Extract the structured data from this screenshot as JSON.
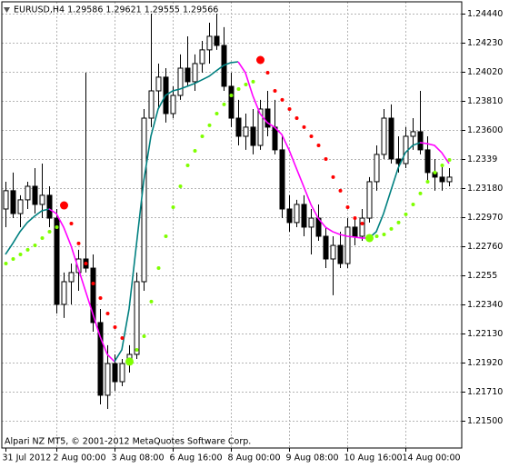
{
  "chart_data": {
    "type": "candlestick",
    "title": "EURUSD,H4  1.29586 1.29621 1.29555 1.29566",
    "footer": "Alpari NZ MT5, © 2001-2012 MetaQuotes Software Corp.",
    "categories": [
      "31 Jul 2012",
      null,
      null,
      null,
      null,
      null,
      null,
      "2 Aug 00:00",
      null,
      null,
      null,
      null,
      null,
      null,
      null,
      "3 Aug 08:00",
      null,
      null,
      null,
      null,
      null,
      null,
      null,
      "6 Aug 16:00",
      null,
      null,
      null,
      null,
      null,
      null,
      null,
      "8 Aug 00:00",
      null,
      null,
      null,
      null,
      null,
      null,
      null,
      "9 Aug 08:00",
      null,
      null,
      null,
      null,
      null,
      null,
      null,
      "10 Aug 16:00",
      null,
      null,
      null,
      null,
      null,
      null,
      null,
      "14 Aug 00:00",
      null,
      null,
      null,
      null,
      null,
      null
    ],
    "open": [
      1.23029,
      1.23161,
      1.22996,
      1.23095,
      1.23193,
      1.23062,
      1.23128,
      1.22963,
      1.2234,
      1.22504,
      1.2257,
      1.22668,
      1.22602,
      1.22209,
      1.21684,
      1.21913,
      1.21782,
      1.21913,
      1.21979,
      1.22504,
      1.23685,
      1.23882,
      1.23981,
      1.23718,
      1.23849,
      1.24046,
      1.23948,
      1.24079,
      1.24178,
      1.24276,
      1.2421,
      1.23915,
      1.23685,
      1.23554,
      1.2362,
      1.23488,
      1.23751,
      1.2362,
      1.23456,
      1.23029,
      1.22931,
      1.23062,
      1.22898,
      1.22963,
      1.22832,
      1.22668,
      1.22766,
      1.22635,
      1.22898,
      1.22832,
      1.22963,
      1.23226,
      1.23423,
      1.23685,
      1.2339,
      1.23357,
      1.23554,
      1.23587,
      1.23456,
      1.23292,
      1.23259,
      1.23226
    ],
    "high": [
      1.23226,
      1.23292,
      1.23128,
      1.23226,
      1.23324,
      1.23357,
      1.23193,
      1.23029,
      1.2257,
      1.22635,
      1.22734,
      1.24013,
      1.22701,
      1.22307,
      1.22045,
      1.21979,
      1.21946,
      1.22045,
      1.2257,
      1.23751,
      1.2444,
      1.24079,
      1.24046,
      1.23915,
      1.24145,
      1.24276,
      1.24145,
      1.24243,
      1.24374,
      1.2444,
      1.24342,
      1.24013,
      1.23817,
      1.23718,
      1.23751,
      1.23817,
      1.23882,
      1.23817,
      1.23554,
      1.23128,
      1.23095,
      1.23128,
      1.23029,
      1.23062,
      1.22898,
      1.22832,
      1.22865,
      1.22963,
      1.22963,
      1.23029,
      1.23259,
      1.23488,
      1.23751,
      1.23784,
      1.23554,
      1.2362,
      1.23685,
      1.23882,
      1.23554,
      1.2339,
      1.23357,
      1.23324
    ],
    "low": [
      1.22898,
      1.22963,
      1.22898,
      1.23029,
      1.22996,
      1.22963,
      1.22898,
      1.22274,
      1.22242,
      1.2234,
      1.22438,
      1.2257,
      1.22143,
      1.21618,
      1.21585,
      1.21716,
      1.21749,
      1.21848,
      1.21946,
      1.22438,
      1.2362,
      1.23751,
      1.23653,
      1.23685,
      1.23817,
      1.23915,
      1.23882,
      1.24013,
      1.24079,
      1.24178,
      1.23882,
      1.2362,
      1.23488,
      1.23456,
      1.23423,
      1.23456,
      1.23554,
      1.23423,
      1.22963,
      1.22865,
      1.22898,
      1.22832,
      1.22701,
      1.22799,
      1.22602,
      1.22406,
      1.22602,
      1.22602,
      1.22766,
      1.22799,
      1.22931,
      1.23161,
      1.2339,
      1.23357,
      1.23292,
      1.23324,
      1.23456,
      1.23423,
      1.23226,
      1.23161,
      1.23161,
      1.23193
    ],
    "close": [
      1.23161,
      1.22996,
      1.23095,
      1.23193,
      1.23062,
      1.23128,
      1.22963,
      1.2234,
      1.22504,
      1.2257,
      1.22668,
      1.22602,
      1.22209,
      1.21684,
      1.21913,
      1.21782,
      1.21913,
      1.21979,
      1.22504,
      1.23685,
      1.23882,
      1.23981,
      1.23718,
      1.23849,
      1.24046,
      1.23948,
      1.24079,
      1.24178,
      1.24276,
      1.2421,
      1.23915,
      1.23685,
      1.23554,
      1.2362,
      1.23488,
      1.23751,
      1.2362,
      1.23456,
      1.23029,
      1.22931,
      1.23062,
      1.22898,
      1.22963,
      1.22832,
      1.22668,
      1.22766,
      1.22635,
      1.22898,
      1.22832,
      1.22963,
      1.23226,
      1.23423,
      1.23685,
      1.2339,
      1.23357,
      1.23554,
      1.23587,
      1.23456,
      1.23292,
      1.23259,
      1.23226,
      1.23259
    ],
    "up_color": "#ffffff",
    "down_color": "#000000",
    "ma": {
      "rise_color": "#008080",
      "fall_color": "#ff00ff",
      "values": [
        1.22701,
        1.2278,
        1.22865,
        1.22931,
        1.22977,
        1.23016,
        1.23029,
        1.22996,
        1.22898,
        1.22766,
        1.22602,
        1.22438,
        1.22274,
        1.2211,
        1.21979,
        1.21927,
        1.22012,
        1.22307,
        1.22766,
        1.23226,
        1.23554,
        1.23751,
        1.23849,
        1.23882,
        1.23895,
        1.23915,
        1.23935,
        1.23961,
        1.23987,
        1.24027,
        1.24066,
        1.24086,
        1.24092,
        1.24013,
        1.23849,
        1.23718,
        1.23653,
        1.2362,
        1.23567,
        1.23456,
        1.23324,
        1.23193,
        1.23062,
        1.22963,
        1.22898,
        1.22865,
        1.22845,
        1.22832,
        1.22826,
        1.22819,
        1.22819,
        1.22865,
        1.22996,
        1.23161,
        1.23324,
        1.23436,
        1.23488,
        1.23508,
        1.23501,
        1.23488,
        1.23436,
        1.23357
      ]
    },
    "sar": [
      {
        "color": "#7fff00",
        "values": [
          1.22635,
          1.22668,
          1.22701,
          1.22734,
          1.22766,
          1.22819,
          1.22865,
          1.22898,
          null,
          null,
          null,
          null,
          null,
          null,
          null,
          null,
          null,
          1.21927,
          1.22012,
          1.2211,
          1.2236,
          1.22602,
          1.22832,
          1.23042,
          1.23193,
          1.23344,
          1.23449,
          1.23554,
          1.23633,
          1.23718,
          1.23784,
          1.23849,
          1.23895,
          1.23928,
          1.23948,
          null,
          null,
          null,
          null,
          null,
          null,
          null,
          null,
          null,
          null,
          null,
          null,
          null,
          null,
          null,
          1.22819,
          1.22832,
          1.22845,
          1.22885,
          1.22931,
          1.2299,
          1.23062,
          1.23141,
          1.23226,
          1.23292,
          1.23344,
          1.23383
        ]
      },
      {
        "color": "#ff0000",
        "values": [
          null,
          null,
          null,
          null,
          null,
          null,
          null,
          null,
          1.23055,
          1.22924,
          1.2278,
          1.22635,
          1.22491,
          1.22386,
          1.22274,
          1.22176,
          1.22097,
          null,
          null,
          null,
          null,
          null,
          null,
          null,
          null,
          null,
          null,
          null,
          null,
          null,
          null,
          null,
          null,
          null,
          null,
          1.24105,
          1.24013,
          1.23882,
          1.23817,
          1.23751,
          1.23685,
          1.2362,
          1.23554,
          1.23488,
          1.2339,
          1.23259,
          1.23161,
          1.23042,
          1.22963,
          1.22924,
          null,
          null,
          null,
          null,
          null,
          null,
          null,
          null,
          null,
          null,
          null,
          null
        ]
      }
    ],
    "ylim": [
      1.21303,
      1.24525
    ],
    "yticks": [
      {
        "value": 1.2444,
        "label": "1.24440"
      },
      {
        "value": 1.2423,
        "label": "1.24230"
      },
      {
        "value": 1.2402,
        "label": "1.24020"
      },
      {
        "value": 1.2381,
        "label": "1.23810"
      },
      {
        "value": 1.236,
        "label": "1.23600"
      },
      1.2339,
      {
        "value": 1.2318,
        "label": "1.23180"
      },
      {
        "value": 1.2297,
        "label": "1.22970"
      },
      {
        "value": 1.2276,
        "label": "1.22760"
      },
      1.2255,
      {
        "value": 1.2234,
        "label": "1.22340"
      },
      {
        "value": 1.2213,
        "label": "1.22130"
      },
      {
        "value": 1.2192,
        "label": "1.21920"
      },
      {
        "value": 1.2171,
        "label": "1.21710"
      },
      {
        "value": 1.215,
        "label": "1.21500"
      }
    ],
    "grid": true
  }
}
